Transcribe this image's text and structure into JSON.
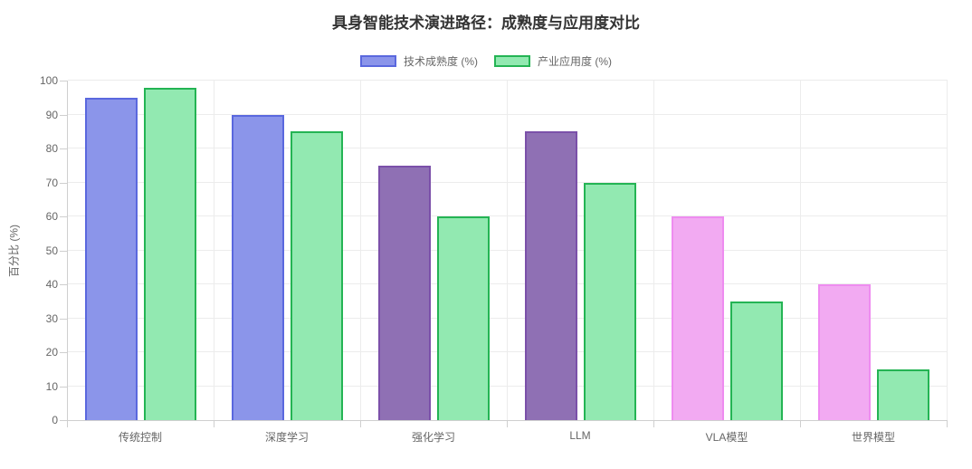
{
  "chart_data": {
    "type": "bar",
    "title": "具身智能技术演进路径：成熟度与应用度对比",
    "categories": [
      "传统控制",
      "深度学习",
      "强化学习",
      "LLM",
      "VLA模型",
      "世界模型"
    ],
    "series": [
      {
        "name": "技术成熟度 (%)",
        "values": [
          95,
          90,
          75,
          85,
          60,
          40
        ],
        "colors": [
          {
            "fill": "#8b95ea",
            "border": "#5a68de"
          },
          {
            "fill": "#8b95ea",
            "border": "#5a68de"
          },
          {
            "fill": "#8f70b4",
            "border": "#7b50a9"
          },
          {
            "fill": "#8f70b4",
            "border": "#7b50a9"
          },
          {
            "fill": "#f2aaf2",
            "border": "#ee8cf0"
          },
          {
            "fill": "#f2aaf2",
            "border": "#ee8cf0"
          }
        ]
      },
      {
        "name": "产业应用度 (%)",
        "values": [
          98,
          85,
          60,
          70,
          35,
          15
        ],
        "colors": [
          {
            "fill": "#92e9b1",
            "border": "#24b454"
          },
          {
            "fill": "#92e9b1",
            "border": "#24b454"
          },
          {
            "fill": "#92e9b1",
            "border": "#24b454"
          },
          {
            "fill": "#92e9b1",
            "border": "#24b454"
          },
          {
            "fill": "#92e9b1",
            "border": "#24b454"
          },
          {
            "fill": "#92e9b1",
            "border": "#24b454"
          }
        ]
      }
    ],
    "xlabel": "",
    "ylabel": "百分比 (%)",
    "ylim": [
      0,
      100
    ],
    "ytick_step": 10,
    "grid": true,
    "legend_position": "top"
  },
  "colors": {
    "grid": "#ececec",
    "axis_border": "#cfcfcf",
    "tick_text": "#666666",
    "title_text": "#333333",
    "background": "#ffffff"
  }
}
